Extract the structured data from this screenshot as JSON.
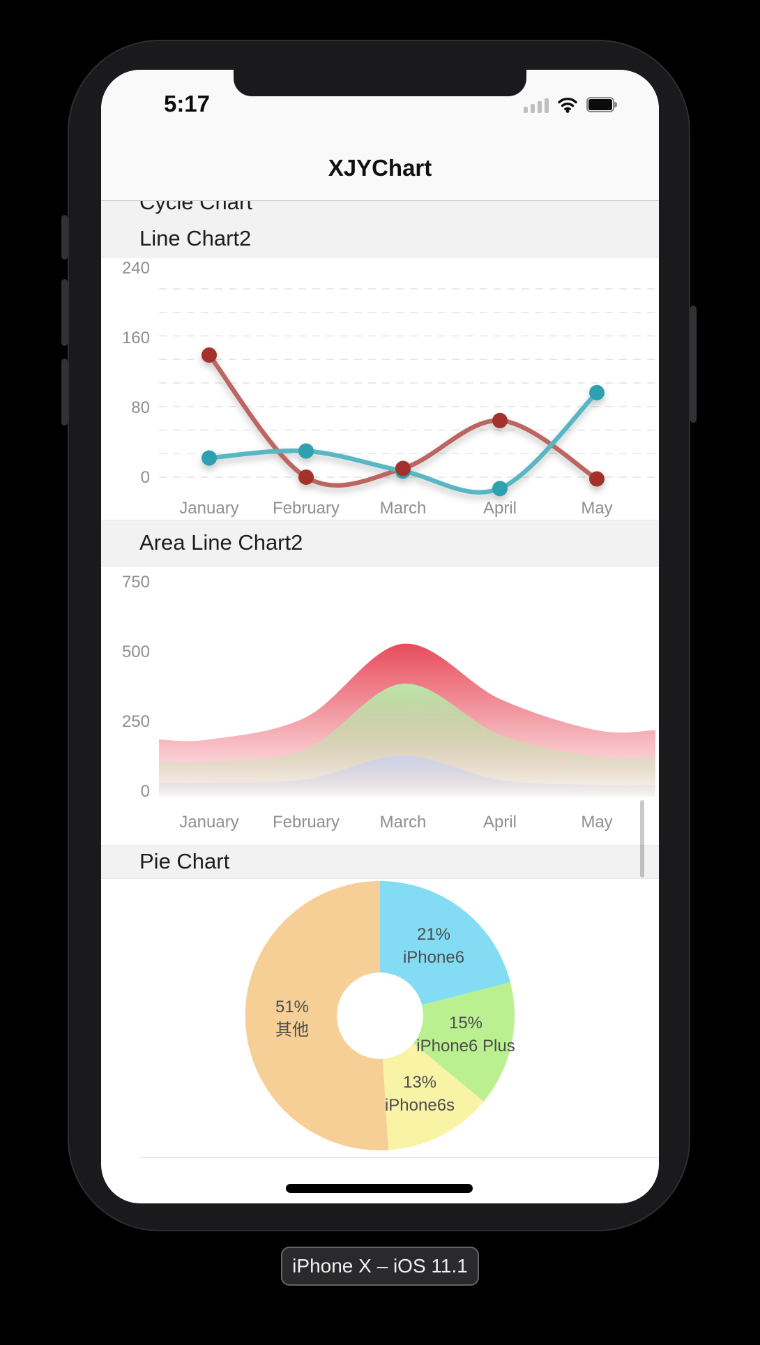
{
  "status_bar": {
    "time": "5:17"
  },
  "nav": {
    "title": "XJYChart"
  },
  "sections": {
    "cycle": "Cycle Chart",
    "line2": "Line Chart2",
    "area2": "Area Line Chart2",
    "pie": "Pie Chart"
  },
  "device_badge": {
    "label": "iPhone X – iOS 11.1"
  },
  "chart_data": [
    {
      "type": "line",
      "title": "Line Chart2",
      "categories": [
        "January",
        "February",
        "March",
        "April",
        "May"
      ],
      "yticks": [
        240,
        160,
        80,
        0
      ],
      "grid": "dashed-horizontal",
      "legend_position": "none",
      "series": [
        {
          "name": "red-series",
          "point_color": "#a23029",
          "line_color": "#bb6660",
          "values": [
            140,
            0,
            10,
            65,
            -2
          ]
        },
        {
          "name": "teal-series",
          "point_color": "#2ea1b0",
          "line_color": "#58b7c3",
          "values": [
            22,
            30,
            7,
            -13,
            97
          ]
        }
      ]
    },
    {
      "type": "area",
      "title": "Area Line Chart2",
      "categories": [
        "January",
        "February",
        "March",
        "April",
        "May"
      ],
      "yticks": [
        750,
        500,
        250,
        0
      ],
      "grid": "off",
      "legend_position": "none",
      "series": [
        {
          "name": "red-area",
          "color": "#e74353",
          "values": [
            185,
            265,
            528,
            330,
            218
          ]
        },
        {
          "name": "green-area",
          "color": "#b6ecaa",
          "values": [
            105,
            150,
            385,
            202,
            122
          ]
        },
        {
          "name": "blue-area",
          "color": "#cdd2ed",
          "values": [
            30,
            42,
            127,
            40,
            22
          ]
        }
      ]
    },
    {
      "type": "pie",
      "title": "Pie Chart",
      "donut": true,
      "start": "top",
      "direction": "clockwise",
      "slices": [
        {
          "label": "iPhone6",
          "pct": 21,
          "color": "#83dcf3"
        },
        {
          "label": "iPhone6 Plus",
          "pct": 15,
          "color": "#baf08f"
        },
        {
          "label": "iPhone6s",
          "pct": 13,
          "color": "#f9f3a6"
        },
        {
          "label": "其他",
          "pct": 51,
          "color": "#f6cf96"
        }
      ]
    }
  ]
}
